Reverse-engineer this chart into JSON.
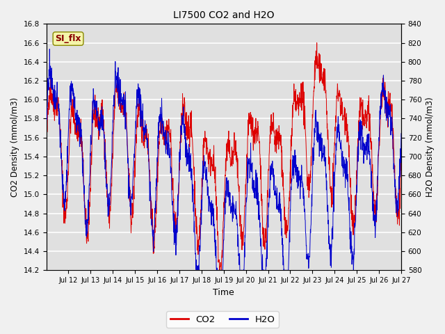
{
  "title": "LI7500 CO2 and H2O",
  "xlabel": "Time",
  "ylabel_left": "CO2 Density (mmol/m3)",
  "ylabel_right": "H2O Density (mmol/m3)",
  "ylim_left": [
    14.2,
    16.8
  ],
  "ylim_right": [
    580,
    840
  ],
  "yticks_left": [
    14.2,
    14.4,
    14.6,
    14.8,
    15.0,
    15.2,
    15.4,
    15.6,
    15.8,
    16.0,
    16.2,
    16.4,
    16.6,
    16.8
  ],
  "yticks_right": [
    580,
    600,
    620,
    640,
    660,
    680,
    700,
    720,
    740,
    760,
    780,
    800,
    820,
    840
  ],
  "xtick_labels": [
    "Jul 12",
    "Jul 13",
    "Jul 14",
    "Jul 15",
    "Jul 16",
    "Jul 17",
    "Jul 18",
    "Jul 19",
    "Jul 20",
    "Jul 21",
    "Jul 22",
    "Jul 23",
    "Jul 24",
    "Jul 25",
    "Jul 26",
    "Jul 27"
  ],
  "color_co2": "#dd0000",
  "color_h2o": "#0000cc",
  "bg_color": "#e0e0e0",
  "grid_color": "#ffffff",
  "annotation_text": "SI_flx",
  "annotation_bg": "#f5f5aa",
  "annotation_border": "#888800",
  "n_points": 1600,
  "seed": 42
}
